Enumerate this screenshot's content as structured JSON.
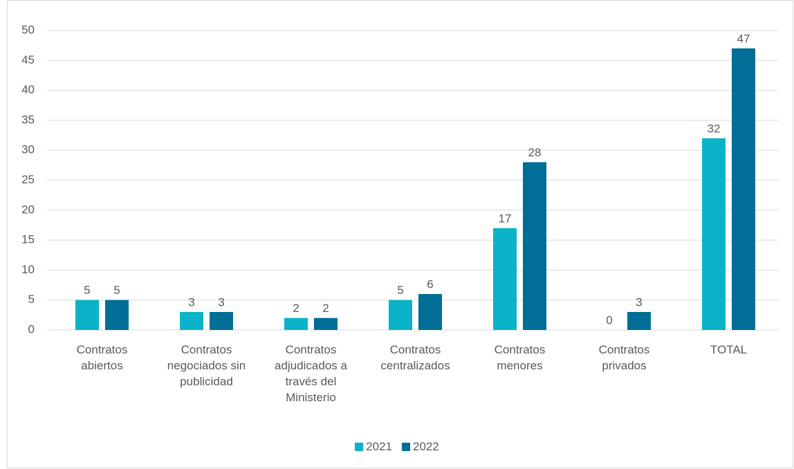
{
  "chart_data": {
    "type": "bar",
    "categories": [
      "Contratos abiertos",
      "Contratos negociados sin publicidad",
      "Contratos adjudicados a través del Ministerio",
      "Contratos centralizados",
      "Contratos menores",
      "Contratos privados",
      "TOTAL"
    ],
    "series": [
      {
        "name": "2021",
        "color": "#0bb3c9",
        "values": [
          5,
          3,
          2,
          5,
          17,
          0,
          32
        ]
      },
      {
        "name": "2022",
        "color": "#006e96",
        "values": [
          5,
          3,
          2,
          6,
          28,
          3,
          47
        ]
      }
    ],
    "ylim": [
      0,
      50
    ],
    "yticks": [
      0,
      5,
      10,
      15,
      20,
      25,
      30,
      35,
      40,
      45,
      50
    ],
    "grid": true,
    "legend": "bottom"
  }
}
